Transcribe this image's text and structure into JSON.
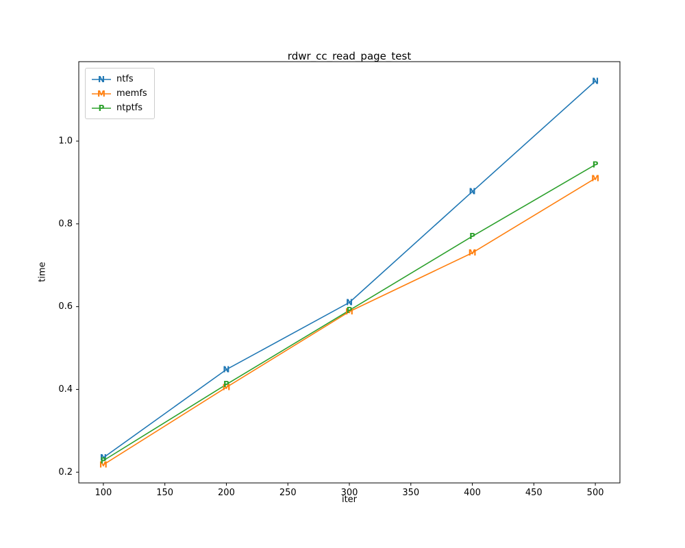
{
  "chart_data": {
    "type": "line",
    "title": "rdwr_cc_read_page_test",
    "xlabel": "iter",
    "ylabel": "time",
    "x": [
      100,
      200,
      300,
      400,
      500
    ],
    "series": [
      {
        "name": "ntfs",
        "marker": "N",
        "color": "#1f77b4",
        "values": [
          0.235,
          0.448,
          0.61,
          0.878,
          1.145
        ]
      },
      {
        "name": "memfs",
        "marker": "M",
        "color": "#ff7f0e",
        "values": [
          0.218,
          0.405,
          0.588,
          0.73,
          0.91
        ]
      },
      {
        "name": "ntptfs",
        "marker": "P",
        "color": "#2ca02c",
        "values": [
          0.228,
          0.412,
          0.591,
          0.77,
          0.943
        ]
      }
    ],
    "xticks": [
      100,
      150,
      200,
      250,
      300,
      350,
      400,
      450,
      500
    ],
    "yticks": [
      0.2,
      0.4,
      0.6,
      0.8,
      1.0
    ],
    "xlim": [
      80,
      520
    ],
    "ylim": [
      0.174,
      1.192
    ],
    "legend_position": "upper left",
    "grid": false,
    "axis_color": "#000000",
    "background": "#ffffff"
  }
}
